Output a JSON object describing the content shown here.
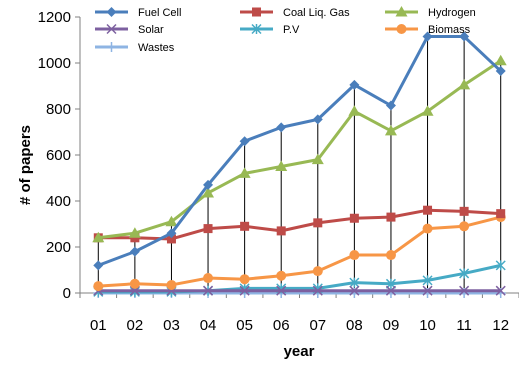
{
  "chart_data": {
    "type": "line",
    "title": "",
    "xlabel": "year",
    "ylabel": "# of papers",
    "ylim": [
      0,
      1200
    ],
    "y_ticks": [
      "0",
      "200",
      "400",
      "600",
      "800",
      "1000",
      "1200"
    ],
    "categories": [
      "01",
      "02",
      "03",
      "04",
      "05",
      "06",
      "07",
      "08",
      "09",
      "10",
      "11",
      "12"
    ],
    "grid": false,
    "legend_position": "top",
    "series": [
      {
        "name": "Fuel Cell",
        "color": "#4a7ebb",
        "marker": "diamond",
        "values": [
          120,
          180,
          260,
          470,
          660,
          720,
          755,
          905,
          815,
          1115,
          1115,
          965
        ]
      },
      {
        "name": "Coal Liq. Gas",
        "color": "#be4b48",
        "marker": "square",
        "values": [
          240,
          240,
          235,
          280,
          290,
          270,
          305,
          325,
          330,
          360,
          355,
          345
        ]
      },
      {
        "name": "Hydrogen",
        "color": "#98b954",
        "marker": "triangle",
        "values": [
          240,
          260,
          310,
          435,
          520,
          550,
          580,
          790,
          705,
          790,
          905,
          1010
        ]
      },
      {
        "name": "Solar",
        "color": "#7d60a0",
        "marker": "x",
        "values": [
          10,
          10,
          10,
          10,
          10,
          10,
          10,
          10,
          10,
          10,
          10,
          10
        ]
      },
      {
        "name": "P.V",
        "color": "#46aac5",
        "marker": "star",
        "values": [
          5,
          5,
          5,
          10,
          20,
          20,
          20,
          45,
          40,
          55,
          85,
          120
        ]
      },
      {
        "name": "Biomass",
        "color": "#f79646",
        "marker": "circle",
        "values": [
          30,
          40,
          35,
          65,
          60,
          75,
          95,
          165,
          165,
          280,
          290,
          330
        ]
      },
      {
        "name": "Wastes",
        "color": "#8eb4e3",
        "marker": "plus",
        "values": [
          0,
          0,
          0,
          0,
          0,
          0,
          0,
          0,
          0,
          0,
          0,
          0
        ]
      }
    ]
  }
}
